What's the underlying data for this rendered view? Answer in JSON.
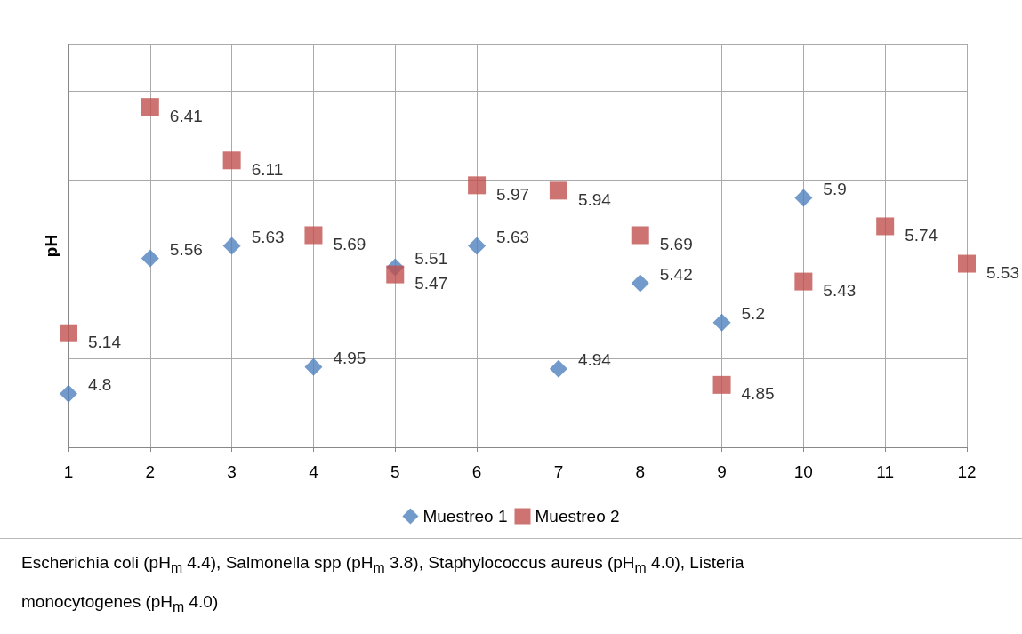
{
  "chart_data": {
    "type": "scatter",
    "ylabel": "pH",
    "x": [
      1,
      2,
      3,
      4,
      5,
      6,
      7,
      8,
      9,
      10,
      11,
      12
    ],
    "series": [
      {
        "name": "Muestreo 1",
        "color": "#4f81bd",
        "marker": "diamond",
        "values": [
          4.8,
          5.56,
          5.63,
          4.95,
          5.51,
          5.63,
          4.94,
          5.42,
          5.2,
          5.9,
          null,
          null
        ]
      },
      {
        "name": "Muestreo 2",
        "color": "#c0504d",
        "marker": "square",
        "values": [
          5.14,
          6.41,
          6.11,
          5.69,
          5.47,
          5.97,
          5.94,
          5.69,
          4.85,
          5.43,
          5.74,
          5.53
        ]
      }
    ],
    "xlim": [
      1,
      12
    ],
    "xticks": [
      1,
      2,
      3,
      4,
      5,
      6,
      7,
      8,
      9,
      10,
      11,
      12
    ],
    "tick_labels": "x",
    "grid": true,
    "legend": "bottom",
    "data_labels": true,
    "annotations": [
      "Escherichia coli (pH$_{m}$ 4.4), Salmonella spp (pH$_{m}$ 3.8), Staphylococcus aureus (pH$_{m}$ 4.0), Listeria monocytogenes (pH$_{m}$ 4.0)"
    ]
  }
}
